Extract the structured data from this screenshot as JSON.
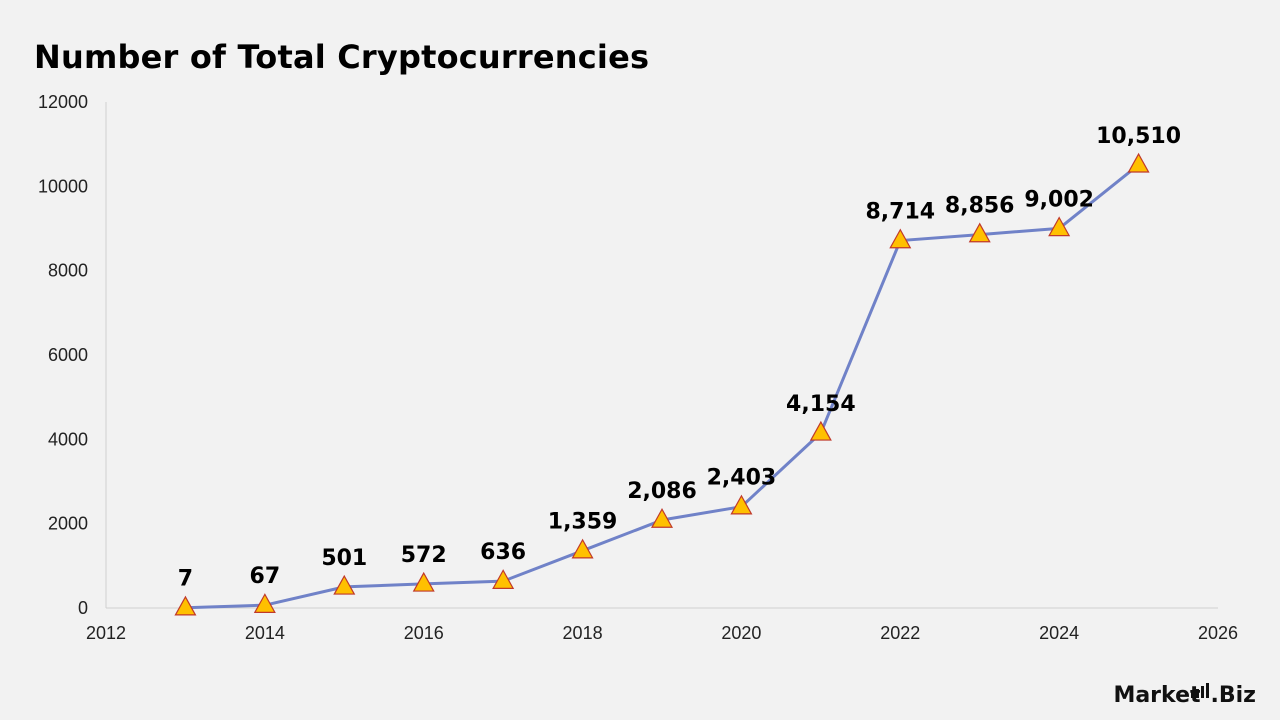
{
  "page": {
    "background": "#f2f2f2",
    "logo_text_main": "Market",
    "logo_text_suffix": ".Biz"
  },
  "chart_data": {
    "type": "line",
    "title": "Number of Total Cryptocurrencies",
    "xlabel": "",
    "ylabel": "",
    "x": [
      2013,
      2014,
      2015,
      2016,
      2017,
      2018,
      2019,
      2020,
      2021,
      2022,
      2023,
      2024,
      2025
    ],
    "series": [
      {
        "values": [
          7,
          67,
          501,
          572,
          636,
          1359,
          2086,
          2403,
          4154,
          8714,
          8856,
          9002,
          10510
        ],
        "data_labels": [
          "7",
          "67",
          "501",
          "572",
          "636",
          "1,359",
          "2,086",
          "2,403",
          "4,154",
          "8,714",
          "8,856",
          "9,002",
          "10,510"
        ],
        "line_color": "#7082c8",
        "marker": "triangle",
        "marker_fill": "#ffc000",
        "marker_stroke": "#c0392b"
      }
    ],
    "xlim": [
      2012,
      2026
    ],
    "ylim": [
      0,
      12000
    ],
    "x_ticks": [
      "2012",
      "2014",
      "2016",
      "2018",
      "2020",
      "2022",
      "2024",
      "2026"
    ],
    "y_ticks": [
      "0",
      "2000",
      "4000",
      "6000",
      "8000",
      "10000",
      "12000"
    ],
    "grid": false,
    "legend": "none"
  }
}
